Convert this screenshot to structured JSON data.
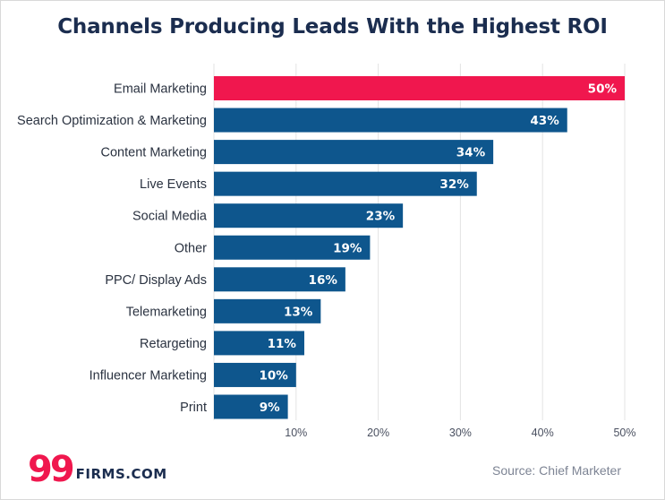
{
  "title": "Channels Producing Leads With the Highest ROI",
  "source": "Source: Chief Marketer",
  "logo": {
    "mark": "99",
    "text": "FIRMS.COM"
  },
  "colors": {
    "highlight": "#f0174e",
    "bar": "#0e568d",
    "title": "#1b2d4f"
  },
  "chart_data": {
    "type": "bar",
    "orientation": "horizontal",
    "title": "Channels Producing Leads With the Highest ROI",
    "categories": [
      "Email Marketing",
      "Search Optimization & Marketing",
      "Content Marketing",
      "Live Events",
      "Social Media",
      "Other",
      "PPC/ Display Ads",
      "Telemarketing",
      "Retargeting",
      "Influencer Marketing",
      "Print"
    ],
    "values": [
      50,
      43,
      34,
      32,
      23,
      19,
      16,
      13,
      11,
      10,
      9
    ],
    "value_labels": [
      "50%",
      "43%",
      "34%",
      "32%",
      "23%",
      "19%",
      "16%",
      "13%",
      "11%",
      "10%",
      "9%"
    ],
    "highlight_index": 0,
    "xlim": [
      0,
      50
    ],
    "xticks": [
      10,
      20,
      30,
      40,
      50
    ],
    "xtick_labels": [
      "10%",
      "20%",
      "30%",
      "40%",
      "50%"
    ],
    "grid": true,
    "legend": "none"
  }
}
